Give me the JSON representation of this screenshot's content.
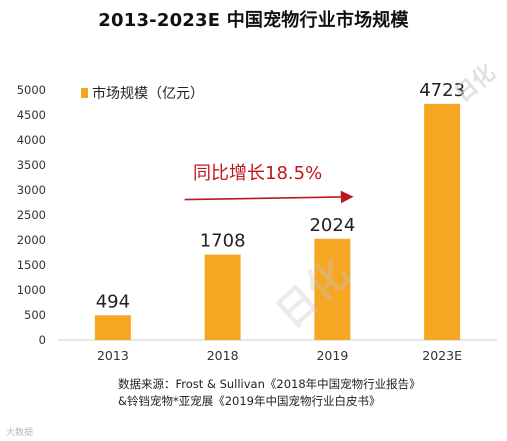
{
  "title": "2013-2023E 中国宠物行业市场规模",
  "chart_data": {
    "type": "bar",
    "title": "2013-2023E 中国宠物行业市场规模",
    "categories": [
      "2013",
      "2018",
      "2019",
      "2023E"
    ],
    "series": [
      {
        "name": "市场规模（亿元）",
        "values": [
          494,
          1708,
          2024,
          4723
        ],
        "color": "#f5a623"
      }
    ],
    "data_labels": [
      "494",
      "1708",
      "2024",
      "4723"
    ],
    "yticks": [
      "0",
      "500",
      "1000",
      "1500",
      "2000",
      "2500",
      "3000",
      "3500",
      "4000",
      "4500",
      "5000"
    ],
    "ylim": [
      0,
      5000
    ],
    "xlabel": "",
    "ylabel": "",
    "legend_position": "top-left",
    "grid": false,
    "annotation": {
      "text": "同比增长18.5%",
      "color": "#c0161d"
    }
  },
  "source_lines": [
    "数据来源：Frost & Sullivan《2018年中国宠物行业报告》",
    "&铃铛宠物*亚宠展《2019年中国宠物行业白皮书》"
  ],
  "watermark": "日化",
  "corner_mark": "大数据"
}
